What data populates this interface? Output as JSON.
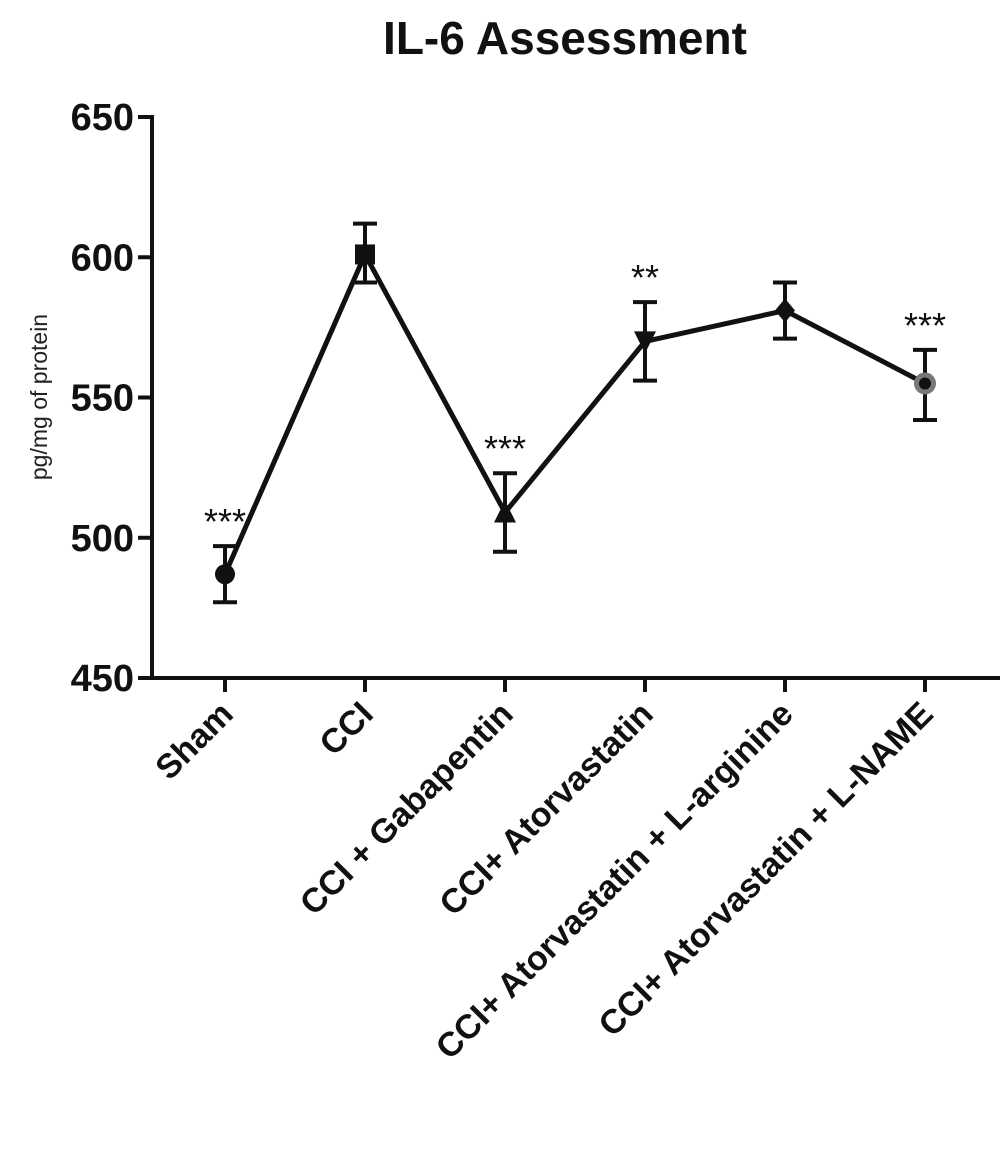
{
  "chart_data": {
    "type": "line",
    "title": "IL-6 Assessment",
    "xlabel": "",
    "ylabel": "pg/mg of protein",
    "ylim": [
      450,
      650
    ],
    "yticks": [
      "450",
      "500",
      "550",
      "600",
      "650"
    ],
    "grid": false,
    "legend": "none",
    "categories": [
      "Sham",
      "CCI",
      "CCI + Gabapentin",
      "CCI+ Atorvastatin",
      "CCI+ Atorvastatin + L-arginine",
      "CCI+ Atorvastatin + L-NAME"
    ],
    "series": [
      {
        "values": [
          487,
          601,
          509,
          570,
          581,
          555
        ],
        "error_low": [
          477,
          591,
          495,
          556,
          571,
          542
        ],
        "error_high": [
          497,
          612,
          523,
          584,
          591,
          567
        ],
        "markers": [
          "circle",
          "square",
          "triangle-up",
          "triangle-down",
          "diamond",
          "circle-gray"
        ],
        "significance": [
          "***",
          "",
          "***",
          "**",
          "",
          "***"
        ]
      }
    ],
    "colors": {
      "line": "#111111",
      "marker": "#111111",
      "marker_alt": "#777777"
    }
  }
}
